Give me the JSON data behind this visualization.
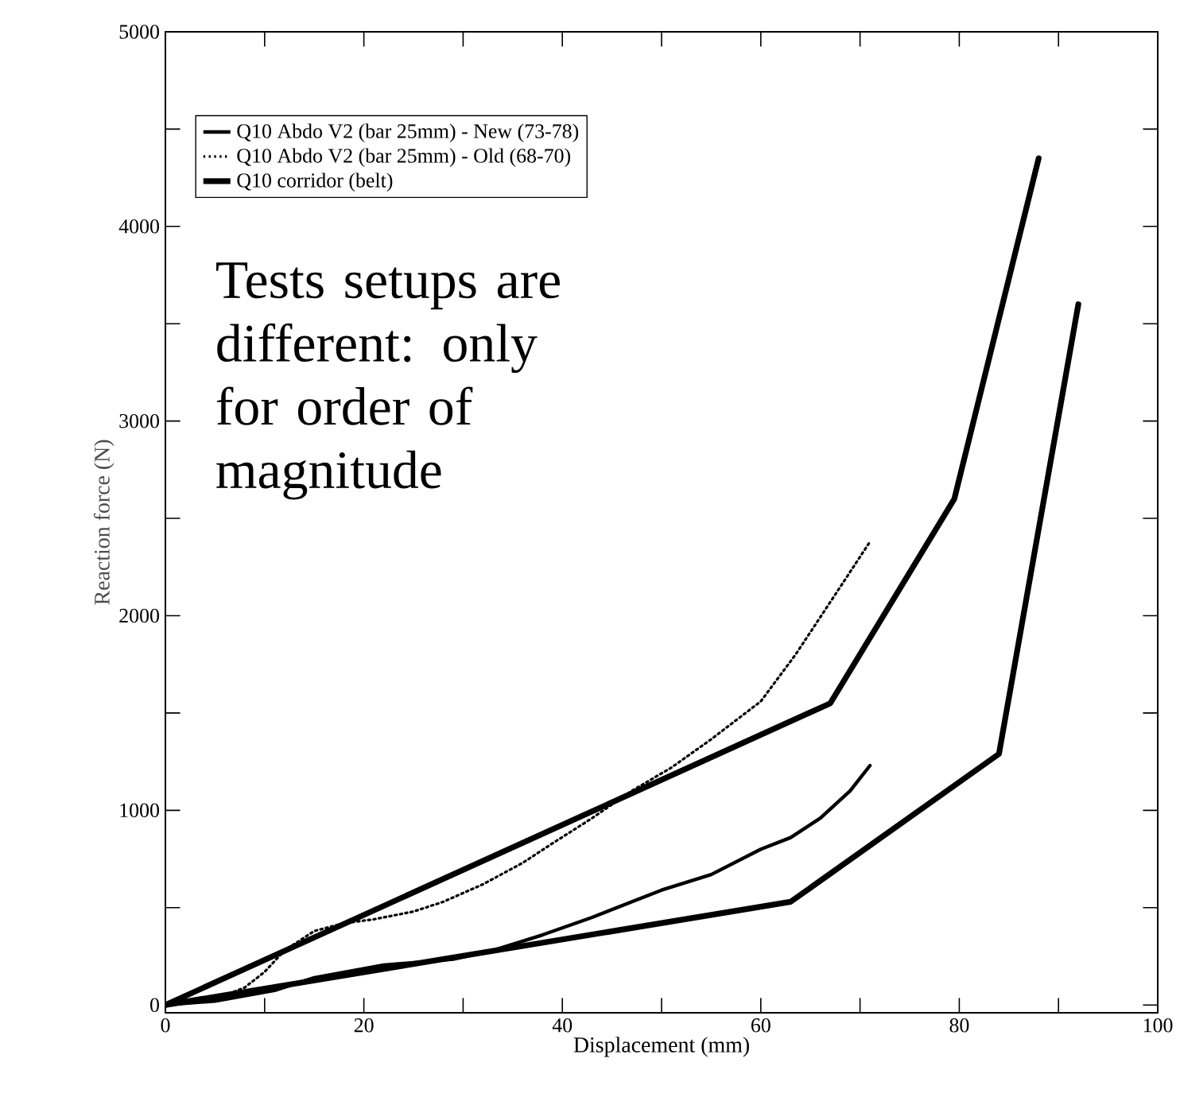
{
  "chart_data": {
    "type": "line",
    "xlabel": "Displacement (mm)",
    "ylabel": "Reaction force (N)",
    "xlim": [
      0,
      100
    ],
    "ylim": [
      -40,
      5000
    ],
    "xticks": [
      0,
      {
        "value": 10,
        "label": null
      },
      20,
      {
        "value": 30,
        "label": null
      },
      40,
      {
        "value": 50,
        "label": null
      },
      60,
      {
        "value": 70,
        "label": null
      },
      80,
      {
        "value": 90,
        "label": null
      },
      100
    ],
    "yticks": [
      0,
      {
        "value": 500,
        "label": null
      },
      1000,
      {
        "value": 1500,
        "label": null
      },
      2000,
      {
        "value": 2500,
        "label": null
      },
      3000,
      {
        "value": 3500,
        "label": null
      },
      4000,
      {
        "value": 4500,
        "label": null
      },
      5000
    ],
    "legend": "top left",
    "grid": false,
    "marker": "none",
    "annotations": [
      {
        "text": "Tests setups are different: only for order of magnitude"
      }
    ],
    "series": [
      {
        "name": "Q10 Abdo V2 (bar 25mm) - New (73-78)",
        "color": "#000000",
        "line_style": "solid",
        "x": [
          0,
          5,
          11,
          15,
          22,
          29,
          33,
          38,
          43,
          50,
          55,
          60,
          63,
          66,
          69,
          71
        ],
        "values": [
          0,
          20,
          75,
          140,
          205,
          235,
          280,
          360,
          450,
          590,
          670,
          800,
          860,
          960,
          1100,
          1230
        ]
      },
      {
        "name": "Q10 Abdo V2 (bar 25mm) - Old (68-70)",
        "color": "#000000",
        "line_style": "dotted",
        "x": [
          0,
          5,
          8,
          10,
          12,
          15,
          18,
          21,
          25,
          28,
          32,
          36,
          39,
          43,
          47,
          51,
          55,
          60,
          63.5,
          67,
          71
        ],
        "values": [
          0,
          30,
          90,
          170,
          280,
          380,
          420,
          440,
          480,
          530,
          620,
          730,
          830,
          960,
          1100,
          1220,
          1365,
          1560,
          1800,
          2070,
          2380
        ]
      },
      {
        "name": "Q10 corridor (belt)",
        "color": "#000000",
        "line_style": "solid",
        "x": [
          0,
          67,
          79.5,
          88
        ],
        "values": [
          0,
          1550,
          2600,
          4350
        ]
      },
      {
        "color": "#000000",
        "line_style": "solid",
        "x": [
          0,
          63,
          84,
          92
        ],
        "values": [
          0,
          530,
          1290,
          3600
        ]
      }
    ]
  }
}
